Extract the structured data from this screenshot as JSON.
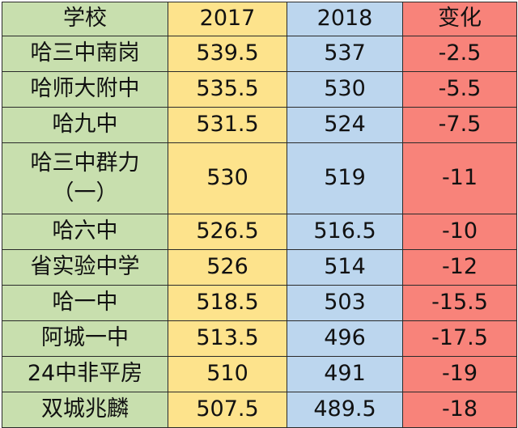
{
  "header": {
    "school": "学校",
    "y2017": "2017",
    "y2018": "2018",
    "change": "变化"
  },
  "rows": [
    {
      "school": "哈三中南岗",
      "y2017": "539.5",
      "y2018": "537",
      "change": "-2.5"
    },
    {
      "school": "哈师大附中",
      "y2017": "535.5",
      "y2018": "530",
      "change": "-5.5"
    },
    {
      "school": "哈九中",
      "y2017": "531.5",
      "y2018": "524",
      "change": "-7.5"
    },
    {
      "school": "哈三中群力（一）",
      "y2017": "530",
      "y2018": "519",
      "change": "-11"
    },
    {
      "school": "哈六中",
      "y2017": "526.5",
      "y2018": "516.5",
      "change": "-10"
    },
    {
      "school": "省实验中学",
      "y2017": "526",
      "y2018": "514",
      "change": "-12"
    },
    {
      "school": "哈一中",
      "y2017": "518.5",
      "y2018": "503",
      "change": "-15.5"
    },
    {
      "school": "阿城一中",
      "y2017": "513.5",
      "y2018": "496",
      "change": "-17.5"
    },
    {
      "school": "24中非平房",
      "y2017": "510",
      "y2018": "491",
      "change": "-19"
    },
    {
      "school": "双城兆麟",
      "y2017": "507.5",
      "y2018": "489.5",
      "change": "-18"
    }
  ]
}
